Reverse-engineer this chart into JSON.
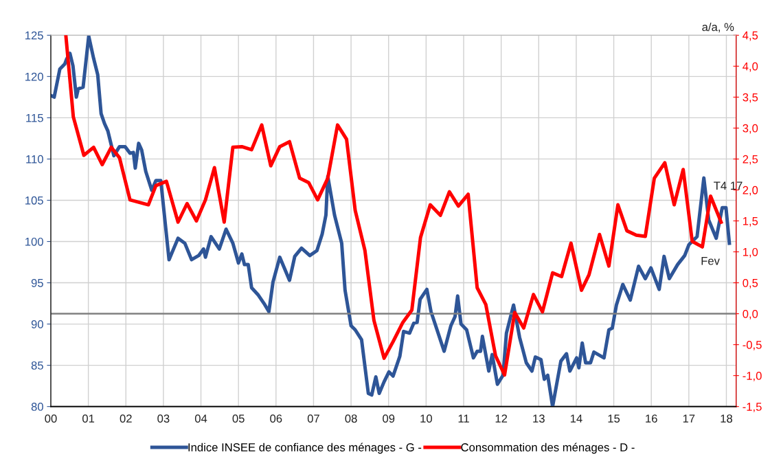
{
  "chart_data": {
    "type": "line",
    "y2label": "a/a, %",
    "xlim": [
      0,
      18.26
    ],
    "xticks": [
      {
        "value": 0,
        "label": "00"
      },
      {
        "value": 1,
        "label": "01"
      },
      {
        "value": 2,
        "label": "02"
      },
      {
        "value": 3,
        "label": "03"
      },
      {
        "value": 4,
        "label": "04"
      },
      {
        "value": 5,
        "label": "05"
      },
      {
        "value": 6,
        "label": "06"
      },
      {
        "value": 7,
        "label": "07"
      },
      {
        "value": 8,
        "label": "08"
      },
      {
        "value": 9,
        "label": "09"
      },
      {
        "value": 10,
        "label": "10"
      },
      {
        "value": 11,
        "label": "11"
      },
      {
        "value": 12,
        "label": "12"
      },
      {
        "value": 13,
        "label": "13"
      },
      {
        "value": 14,
        "label": "14"
      },
      {
        "value": 15,
        "label": "15"
      },
      {
        "value": 16,
        "label": "16"
      },
      {
        "value": 17,
        "label": "17"
      },
      {
        "value": 18,
        "label": "18"
      }
    ],
    "ylim": [
      80,
      125
    ],
    "yticks": [
      80,
      85,
      90,
      95,
      100,
      105,
      110,
      115,
      120,
      125
    ],
    "y2lim": [
      -1.5,
      4.5
    ],
    "y2ticks": [
      {
        "value": -1.5,
        "label": "-1,5"
      },
      {
        "value": -1.0,
        "label": "-1,0"
      },
      {
        "value": -0.5,
        "label": "-0,5"
      },
      {
        "value": 0,
        "label": "0,0"
      },
      {
        "value": 0.5,
        "label": "0,5"
      },
      {
        "value": 1.0,
        "label": "1,0"
      },
      {
        "value": 1.5,
        "label": "1,5"
      },
      {
        "value": 2.0,
        "label": "2,0"
      },
      {
        "value": 2.5,
        "label": "2,5"
      },
      {
        "value": 3.0,
        "label": "3,0"
      },
      {
        "value": 3.5,
        "label": "3,5"
      },
      {
        "value": 4.0,
        "label": "4,0"
      },
      {
        "value": 4.5,
        "label": "4,5"
      }
    ],
    "grid": true,
    "legend": "bottom",
    "marker": "none",
    "line_style": "solid",
    "ref_lines": [
      {
        "axis": "y2",
        "value": 0,
        "color": "#808080"
      }
    ],
    "annotations": [
      {
        "text": "T4 17",
        "x": 17.86,
        "y": 102.3
      },
      {
        "text": "Fev",
        "x": 18.08,
        "y": 99.8
      }
    ],
    "series": [
      {
        "name": "Indice INSEE de confiance des ménages - G -",
        "color": "#2e5597",
        "x": [
          0.0,
          0.09,
          0.24,
          0.37,
          0.42,
          0.51,
          0.59,
          0.68,
          0.73,
          0.86,
          1.01,
          1.14,
          1.25,
          1.34,
          1.43,
          1.52,
          1.68,
          1.83,
          1.98,
          2.11,
          2.2,
          2.25,
          2.34,
          2.42,
          2.53,
          2.69,
          2.8,
          2.93,
          3.15,
          3.39,
          3.57,
          3.75,
          3.94,
          4.07,
          4.12,
          4.27,
          4.49,
          4.67,
          4.85,
          5.0,
          5.09,
          5.16,
          5.26,
          5.35,
          5.53,
          5.68,
          5.81,
          5.92,
          6.1,
          6.36,
          6.5,
          6.68,
          6.9,
          7.09,
          7.23,
          7.33,
          7.38,
          7.56,
          7.75,
          7.84,
          8.0,
          8.11,
          8.28,
          8.46,
          8.55,
          8.66,
          8.75,
          8.88,
          9.01,
          9.12,
          9.3,
          9.4,
          9.56,
          9.67,
          9.76,
          9.84,
          10.02,
          10.13,
          10.48,
          10.66,
          10.77,
          10.84,
          10.93,
          11.08,
          11.26,
          11.36,
          11.45,
          11.5,
          11.67,
          11.76,
          11.9,
          12.05,
          12.14,
          12.33,
          12.49,
          12.67,
          12.82,
          12.91,
          13.06,
          13.15,
          13.24,
          13.37,
          13.59,
          13.74,
          13.83,
          14.01,
          14.07,
          14.16,
          14.25,
          14.38,
          14.47,
          14.74,
          14.87,
          14.96,
          15.07,
          15.24,
          15.44,
          15.66,
          15.84,
          15.99,
          16.21,
          16.34,
          16.48,
          16.7,
          16.89,
          17.0,
          17.22,
          17.4,
          17.53,
          17.73,
          17.89,
          17.99,
          18.08
        ],
        "values": [
          117.7,
          117.5,
          120.9,
          121.5,
          122.1,
          122.8,
          121.3,
          117.5,
          118.5,
          118.7,
          124.9,
          122.2,
          120.2,
          115.5,
          114.3,
          113.4,
          110.4,
          111.5,
          111.5,
          110.7,
          110.8,
          108.9,
          111.9,
          111.1,
          108.5,
          106.2,
          107.4,
          107.4,
          97.8,
          100.4,
          99.8,
          97.8,
          98.3,
          99.1,
          98.1,
          100.6,
          99.1,
          101.5,
          99.8,
          97.4,
          98.5,
          97.2,
          97.2,
          94.4,
          93.5,
          92.5,
          91.5,
          95.1,
          98.1,
          95.3,
          98.2,
          99.2,
          98.3,
          98.9,
          100.9,
          103.2,
          107.9,
          103.2,
          99.8,
          94.1,
          89.8,
          89.3,
          88.1,
          81.6,
          81.4,
          83.6,
          81.6,
          83.0,
          84.2,
          83.7,
          86.1,
          89.1,
          88.9,
          90.1,
          90.2,
          93.0,
          94.2,
          91.5,
          86.7,
          89.8,
          90.9,
          93.4,
          90.0,
          89.3,
          85.9,
          86.7,
          86.7,
          88.5,
          84.3,
          86.3,
          82.7,
          83.8,
          88.9,
          92.3,
          88.4,
          85.3,
          84.3,
          86.0,
          85.7,
          83.3,
          83.8,
          80.0,
          85.5,
          86.4,
          84.3,
          85.9,
          84.7,
          87.7,
          85.3,
          85.3,
          86.6,
          85.9,
          89.3,
          89.5,
          92.3,
          94.8,
          92.9,
          97.0,
          95.5,
          96.8,
          94.2,
          98.2,
          95.5,
          97.2,
          98.3,
          99.6,
          100.6,
          107.7,
          102.6,
          100.4,
          104.1,
          104.1,
          99.8
        ]
      },
      {
        "name": "Consommation des ménages - D -",
        "color": "#ff0000",
        "axis": "y2",
        "x": [
          0.4,
          0.6,
          0.88,
          1.14,
          1.37,
          1.61,
          1.83,
          2.11,
          2.6,
          2.8,
          3.08,
          3.39,
          3.63,
          3.88,
          4.12,
          4.36,
          4.62,
          4.85,
          5.09,
          5.35,
          5.62,
          5.86,
          6.1,
          6.36,
          6.63,
          6.87,
          7.11,
          7.38,
          7.64,
          7.88,
          8.11,
          8.37,
          8.61,
          8.88,
          9.12,
          9.38,
          9.62,
          9.85,
          10.11,
          10.38,
          10.62,
          10.86,
          11.12,
          11.36,
          11.59,
          11.85,
          12.09,
          12.36,
          12.6,
          12.86,
          13.1,
          13.37,
          13.61,
          13.86,
          14.14,
          14.34,
          14.62,
          14.87,
          15.11,
          15.35,
          15.6,
          15.84,
          16.08,
          16.36,
          16.61,
          16.85,
          17.09,
          17.36,
          17.58,
          17.86
        ],
        "values": [
          4.5,
          3.18,
          2.56,
          2.69,
          2.41,
          2.69,
          2.52,
          1.84,
          1.76,
          2.07,
          2.14,
          1.48,
          1.78,
          1.5,
          1.84,
          2.36,
          1.48,
          2.69,
          2.7,
          2.65,
          3.05,
          2.39,
          2.7,
          2.78,
          2.19,
          2.12,
          1.84,
          2.19,
          3.05,
          2.82,
          1.67,
          1.02,
          -0.11,
          -0.72,
          -0.45,
          -0.14,
          0.06,
          1.23,
          1.76,
          1.59,
          1.97,
          1.74,
          1.93,
          0.42,
          0.15,
          -0.68,
          -0.99,
          0.02,
          -0.23,
          0.31,
          0.03,
          0.66,
          0.6,
          1.14,
          0.38,
          0.63,
          1.28,
          0.77,
          1.76,
          1.34,
          1.27,
          1.25,
          2.19,
          2.44,
          1.76,
          2.33,
          1.17,
          1.08,
          1.9,
          1.48
        ]
      }
    ]
  }
}
